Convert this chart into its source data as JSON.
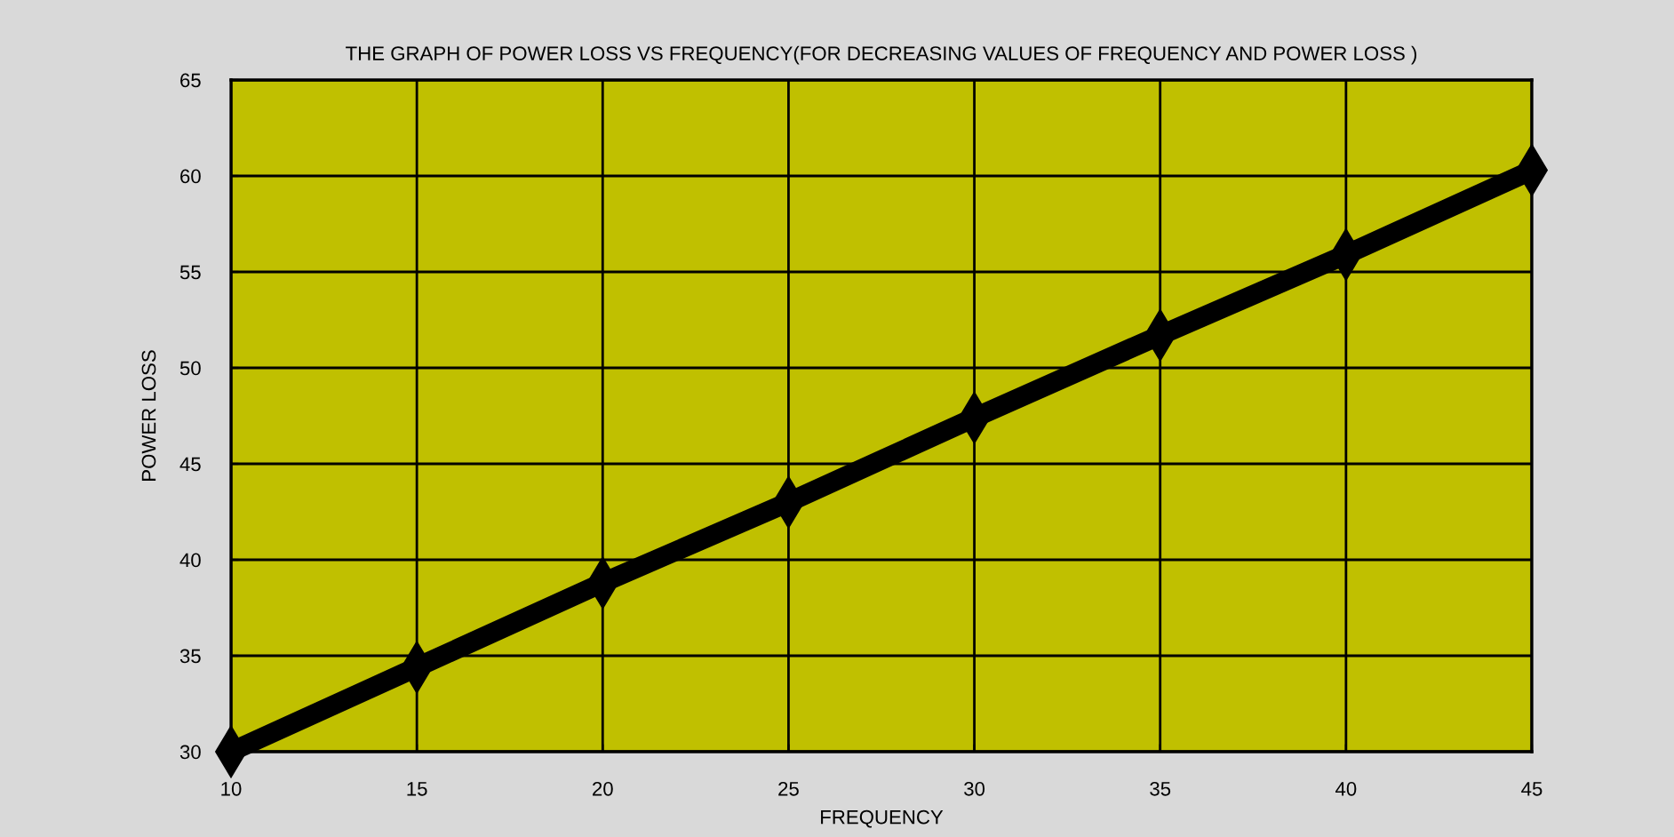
{
  "chart_data": {
    "type": "line",
    "title": "THE GRAPH OF POWER LOSS VS FREQUENCY(FOR DECREASING VALUES OF FREQUENCY AND POWER LOSS )",
    "xlabel": "FREQUENCY",
    "ylabel": "POWER LOSS",
    "x": [
      10,
      15,
      20,
      25,
      30,
      35,
      40,
      45
    ],
    "series": [
      {
        "color": "#000000",
        "values": [
          30,
          34.4,
          38.8,
          43.0,
          47.4,
          51.7,
          55.9,
          60.3
        ]
      }
    ],
    "xlim": [
      10,
      45
    ],
    "xticks": [
      10,
      15,
      20,
      25,
      30,
      35,
      40,
      45
    ],
    "ylim": [
      30,
      65
    ],
    "yticks": [
      30,
      35,
      40,
      45,
      50,
      55,
      60,
      65
    ],
    "grid": true,
    "marker": "diamond",
    "line_style": "solid",
    "legend": false
  }
}
